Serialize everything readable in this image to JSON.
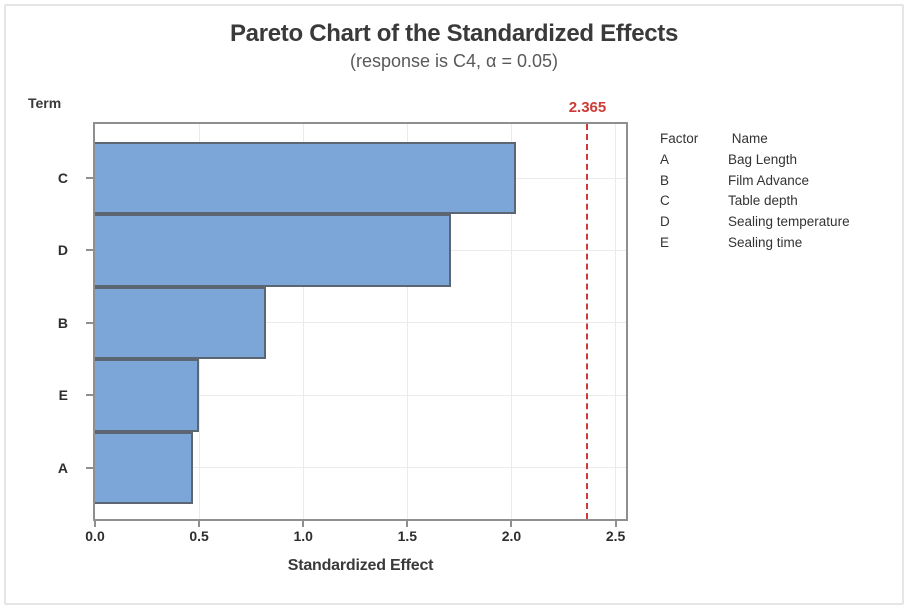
{
  "title": "Pareto Chart of the Standardized Effects",
  "subtitle": "(response is C4, α = 0.05)",
  "y_axis_title": "Term",
  "x_axis_title": "Standardized Effect",
  "reference_line": {
    "value": 2.365,
    "label": "2.365"
  },
  "legend": {
    "factor_header": "Factor",
    "name_header": "Name",
    "rows": [
      {
        "factor": "A",
        "name": "Bag Length"
      },
      {
        "factor": "B",
        "name": "Film Advance"
      },
      {
        "factor": "C",
        "name": "Table depth"
      },
      {
        "factor": "D",
        "name": "Sealing temperature"
      },
      {
        "factor": "E",
        "name": "Sealing time"
      }
    ]
  },
  "chart_data": {
    "type": "bar",
    "orientation": "horizontal",
    "title": "Pareto Chart of the Standardized Effects",
    "subtitle": "(response is C4, α = 0.05)",
    "xlabel": "Standardized Effect",
    "ylabel": "Term",
    "categories": [
      "C",
      "D",
      "B",
      "E",
      "A"
    ],
    "values": [
      2.02,
      1.71,
      0.82,
      0.5,
      0.47
    ],
    "reference_line": 2.365,
    "xlim": [
      0,
      2.55
    ],
    "xticks": [
      0,
      0.5,
      1.0,
      1.5,
      2.0,
      2.5
    ],
    "xtick_labels": [
      "0.0",
      "0.5",
      "1.0",
      "1.5",
      "2.0",
      "2.5"
    ],
    "grid": "light-both-axes",
    "legend_position": "right"
  },
  "colors": {
    "bar_fill": "#7CA6D8",
    "bar_border": "#5B6672",
    "plot_frame": "#8F8F8F",
    "gridline": "#EBEBEB",
    "reference": "#CD3B37",
    "title_text": "#3A3A3A",
    "subtitle_text": "#595959",
    "axis_text": "#2E2E2E"
  }
}
